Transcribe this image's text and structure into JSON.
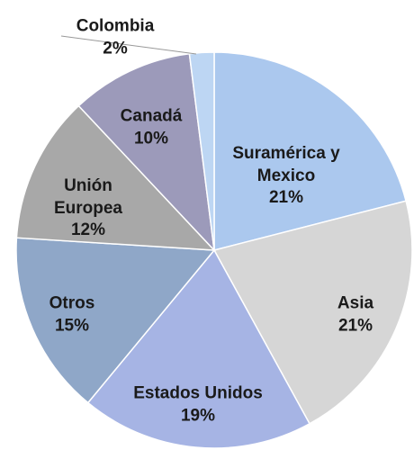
{
  "chart_data": {
    "type": "pie",
    "categories": [
      "Suramérica y Mexico",
      "Asia",
      "Estados Unidos",
      "Otros",
      "Unión Europea",
      "Canadá",
      "Colombia"
    ],
    "values": [
      21,
      21,
      19,
      15,
      12,
      10,
      2
    ],
    "value_labels": [
      "21%",
      "21%",
      "19%",
      "15%",
      "12%",
      "10%",
      "2%"
    ],
    "colors": [
      "#abc8ee",
      "#d6d6d6",
      "#a6b4e4",
      "#8fa7c8",
      "#a8a8a8",
      "#9c9aba",
      "#bdd6f3"
    ]
  }
}
